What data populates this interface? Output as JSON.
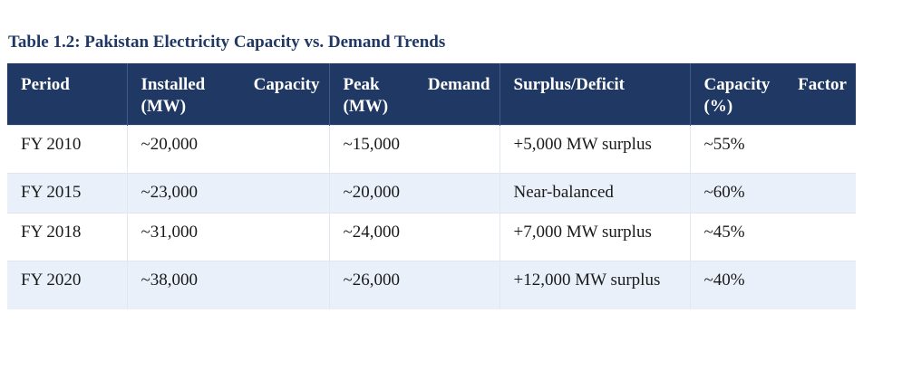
{
  "caption": "Table 1.2: Pakistan Electricity Capacity vs. Demand Trends",
  "table": {
    "headers": [
      "Period",
      "Installed Capacity (MW)",
      "Peak Demand (MW)",
      "Surplus/Deficit",
      "Capacity Factor (%)"
    ],
    "rows": [
      [
        "FY 2010",
        "~20,000",
        "~15,000",
        "+5,000 MW surplus",
        "~55%"
      ],
      [
        "FY 2015",
        "~23,000",
        "~20,000",
        "Near-balanced",
        "~60%"
      ],
      [
        "FY 2018",
        "~31,000",
        "~24,000",
        "+7,000 MW surplus",
        "~45%"
      ],
      [
        "FY 2020",
        "~38,000",
        "~26,000",
        "+12,000 MW surplus",
        "~40%"
      ]
    ]
  },
  "colors": {
    "header_background": "#1f3864",
    "caption_text": "#1f3864",
    "stripe_background": "#e9f0fa"
  }
}
